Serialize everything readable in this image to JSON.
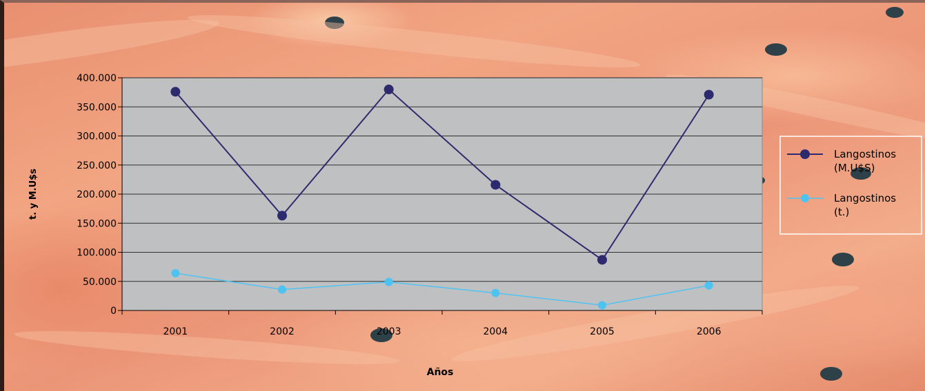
{
  "chart_data": {
    "type": "line",
    "title": "",
    "xlabel": "Años",
    "ylabel": "t. y M.U$s",
    "categories": [
      "2001",
      "2002",
      "2003",
      "2004",
      "2005",
      "2006"
    ],
    "ylim": [
      0,
      400000
    ],
    "yticks": [
      0,
      50000,
      100000,
      150000,
      200000,
      250000,
      300000,
      350000,
      400000
    ],
    "ytick_labels": [
      "0",
      "50.000",
      "100.000",
      "150.000",
      "200.000",
      "250.000",
      "300.000",
      "350.000",
      "400.000"
    ],
    "series": [
      {
        "name": "Langostinos (M.U$S)",
        "legend_lines": [
          "Langostinos",
          "(M.U$S)"
        ],
        "color": "#2e2a6e",
        "values": [
          376000,
          163000,
          380000,
          216000,
          87000,
          371000
        ]
      },
      {
        "name": "Langostinos (t.)",
        "legend_lines": [
          "Langostinos",
          "(t.)"
        ],
        "color": "#4ec3f2",
        "values": [
          64000,
          36000,
          49000,
          30000,
          9000,
          43000
        ]
      }
    ],
    "grid": true,
    "legend_position": "right",
    "plot_background": "#bfc0c2"
  }
}
